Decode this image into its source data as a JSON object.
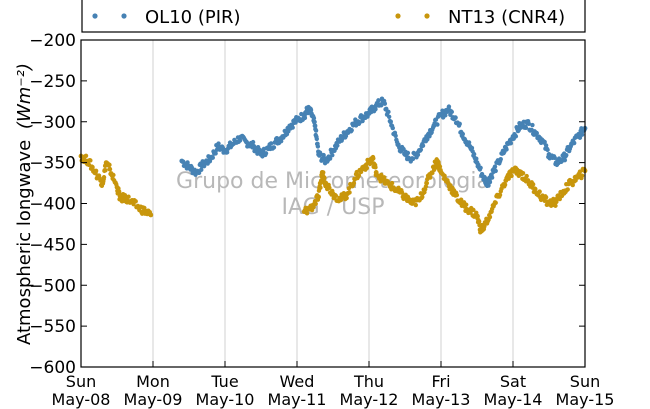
{
  "chart_data": {
    "type": "scatter",
    "ylabel_text": "Atmospheric longwave",
    "ylabel_units": "(Wm⁻²)",
    "watermark": [
      "Grupo de Micrometeorologia",
      "IAG / USP"
    ],
    "ylim": [
      -600,
      -200
    ],
    "yticks": [
      -600,
      -550,
      -500,
      -450,
      -400,
      -350,
      -300,
      -250,
      -200
    ],
    "xlim": [
      0,
      7
    ],
    "xticks": [
      {
        "x": 0,
        "day": "Sun",
        "date": "May-08"
      },
      {
        "x": 1,
        "day": "Mon",
        "date": "May-09"
      },
      {
        "x": 2,
        "day": "Tue",
        "date": "May-10"
      },
      {
        "x": 3,
        "day": "Wed",
        "date": "May-11"
      },
      {
        "x": 4,
        "day": "Thu",
        "date": "May-12"
      },
      {
        "x": 5,
        "day": "Fri",
        "date": "May-13"
      },
      {
        "x": 6,
        "day": "Sat",
        "date": "May-14"
      },
      {
        "x": 7,
        "day": "Sun",
        "date": "May-15"
      }
    ],
    "grid": "vertical",
    "legend_position": "top",
    "series": [
      {
        "name": "OL10 (PIR)",
        "color": "#4682b4",
        "points": [
          [
            1.4,
            -348
          ],
          [
            1.5,
            -355
          ],
          [
            1.6,
            -362
          ],
          [
            1.7,
            -352
          ],
          [
            1.8,
            -345
          ],
          [
            1.9,
            -330
          ],
          [
            2.0,
            -335
          ],
          [
            2.1,
            -328
          ],
          [
            2.2,
            -320
          ],
          [
            2.3,
            -325
          ],
          [
            2.4,
            -330
          ],
          [
            2.5,
            -340
          ],
          [
            2.6,
            -333
          ],
          [
            2.7,
            -325
          ],
          [
            2.8,
            -318
          ],
          [
            2.9,
            -305
          ],
          [
            3.0,
            -298
          ],
          [
            3.1,
            -292
          ],
          [
            3.15,
            -285
          ],
          [
            3.2,
            -290
          ],
          [
            3.25,
            -305
          ],
          [
            3.3,
            -340
          ],
          [
            3.4,
            -348
          ],
          [
            3.5,
            -335
          ],
          [
            3.6,
            -322
          ],
          [
            3.7,
            -312
          ],
          [
            3.8,
            -302
          ],
          [
            3.9,
            -295
          ],
          [
            4.0,
            -290
          ],
          [
            4.1,
            -280
          ],
          [
            4.2,
            -275
          ],
          [
            4.3,
            -300
          ],
          [
            4.4,
            -328
          ],
          [
            4.5,
            -340
          ],
          [
            4.6,
            -345
          ],
          [
            4.7,
            -335
          ],
          [
            4.8,
            -318
          ],
          [
            4.9,
            -305
          ],
          [
            5.0,
            -292
          ],
          [
            5.1,
            -285
          ],
          [
            5.2,
            -295
          ],
          [
            5.3,
            -315
          ],
          [
            5.4,
            -330
          ],
          [
            5.5,
            -350
          ],
          [
            5.6,
            -370
          ],
          [
            5.65,
            -375
          ],
          [
            5.7,
            -365
          ],
          [
            5.8,
            -350
          ],
          [
            5.9,
            -332
          ],
          [
            6.0,
            -318
          ],
          [
            6.1,
            -305
          ],
          [
            6.2,
            -302
          ],
          [
            6.3,
            -312
          ],
          [
            6.4,
            -322
          ],
          [
            6.5,
            -340
          ],
          [
            6.6,
            -350
          ],
          [
            6.7,
            -345
          ],
          [
            6.8,
            -330
          ],
          [
            6.9,
            -318
          ],
          [
            7.0,
            -308
          ]
        ]
      },
      {
        "name": "NT13 (CNR4)",
        "color": "#c8960c",
        "points": [
          [
            0.0,
            -342
          ],
          [
            0.1,
            -348
          ],
          [
            0.2,
            -362
          ],
          [
            0.3,
            -375
          ],
          [
            0.35,
            -350
          ],
          [
            0.4,
            -358
          ],
          [
            0.5,
            -380
          ],
          [
            0.55,
            -395
          ],
          [
            0.6,
            -392
          ],
          [
            0.7,
            -398
          ],
          [
            0.8,
            -405
          ],
          [
            0.9,
            -410
          ],
          [
            0.97,
            -414
          ],
          [
            3.1,
            -410
          ],
          [
            3.2,
            -405
          ],
          [
            3.3,
            -392
          ],
          [
            3.35,
            -362
          ],
          [
            3.4,
            -375
          ],
          [
            3.5,
            -388
          ],
          [
            3.6,
            -395
          ],
          [
            3.7,
            -388
          ],
          [
            3.8,
            -370
          ],
          [
            3.9,
            -358
          ],
          [
            4.0,
            -350
          ],
          [
            4.05,
            -345
          ],
          [
            4.1,
            -362
          ],
          [
            4.2,
            -372
          ],
          [
            4.3,
            -378
          ],
          [
            4.4,
            -385
          ],
          [
            4.5,
            -392
          ],
          [
            4.6,
            -400
          ],
          [
            4.7,
            -396
          ],
          [
            4.8,
            -375
          ],
          [
            4.9,
            -355
          ],
          [
            4.95,
            -348
          ],
          [
            5.0,
            -362
          ],
          [
            5.1,
            -375
          ],
          [
            5.2,
            -390
          ],
          [
            5.3,
            -402
          ],
          [
            5.4,
            -408
          ],
          [
            5.5,
            -415
          ],
          [
            5.55,
            -432
          ],
          [
            5.6,
            -428
          ],
          [
            5.7,
            -410
          ],
          [
            5.8,
            -390
          ],
          [
            5.9,
            -372
          ],
          [
            6.0,
            -360
          ],
          [
            6.1,
            -362
          ],
          [
            6.2,
            -372
          ],
          [
            6.3,
            -382
          ],
          [
            6.4,
            -392
          ],
          [
            6.5,
            -400
          ],
          [
            6.6,
            -398
          ],
          [
            6.7,
            -385
          ],
          [
            6.8,
            -375
          ],
          [
            6.9,
            -368
          ],
          [
            7.0,
            -360
          ]
        ]
      }
    ]
  }
}
